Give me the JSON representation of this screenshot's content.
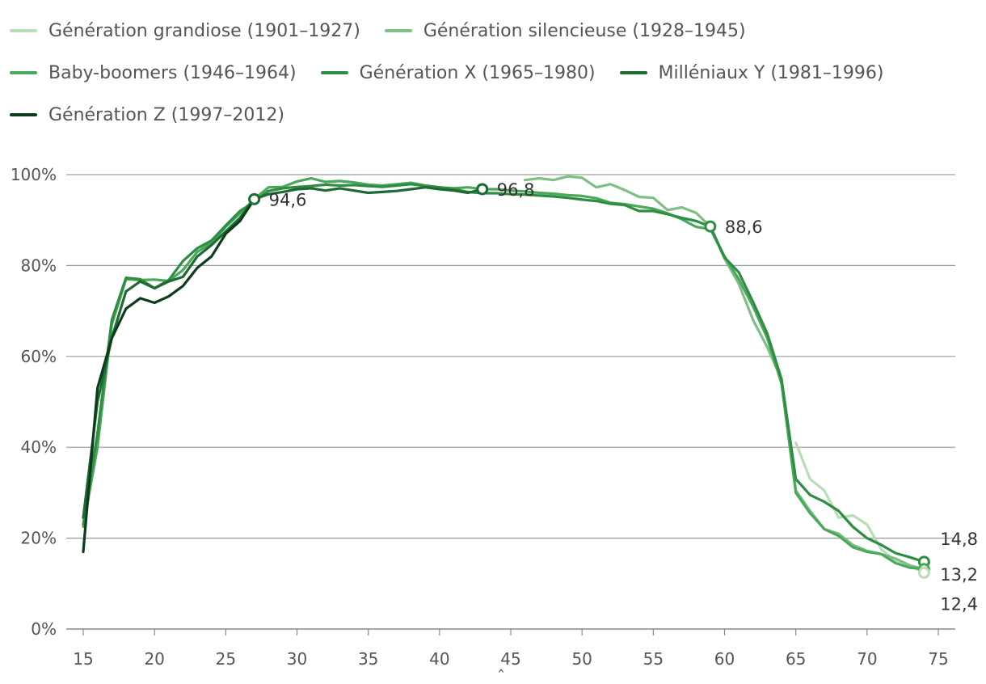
{
  "chart_data": {
    "type": "line",
    "title": "",
    "xlabel": "",
    "ylabel": "",
    "xlim": [
      15,
      75
    ],
    "ylim": [
      0,
      100
    ],
    "x_ticks": [
      15,
      20,
      25,
      30,
      35,
      40,
      45,
      50,
      55,
      60,
      65,
      70,
      75
    ],
    "x_tick_labels": [
      "15",
      "20",
      "25",
      "30",
      "35",
      "40",
      "45",
      "50",
      "55",
      "60",
      "65",
      "70",
      "75"
    ],
    "y_ticks": [
      0,
      20,
      40,
      60,
      80,
      100
    ],
    "y_tick_labels": [
      "0%",
      "20%",
      "40%",
      "60%",
      "80%",
      "100%"
    ],
    "grid": "horizontal",
    "legend_position": "top",
    "annotation_under_axis": "ˆ",
    "series": [
      {
        "name": "Génération grandiose (1901–1927)",
        "color": "#b9dcb9",
        "x": [
          65,
          66,
          67,
          68,
          69,
          70,
          71,
          72,
          73,
          74
        ],
        "values": [
          41.0,
          33.0,
          30.5,
          24.5,
          25.0,
          23.0,
          17.5,
          15.0,
          14.0,
          12.4
        ]
      },
      {
        "name": "Génération silencieuse (1928–1945)",
        "color": "#7dbf86",
        "x": [
          46,
          47,
          48,
          49,
          50,
          51,
          52,
          53,
          54,
          55,
          56,
          57,
          58,
          59,
          60,
          61,
          62,
          63,
          64,
          65,
          66,
          67,
          68,
          69,
          70,
          71,
          72,
          73,
          74
        ],
        "values": [
          98.8,
          99.2,
          98.8,
          99.6,
          99.3,
          97.2,
          97.9,
          96.6,
          95.1,
          94.9,
          92.2,
          92.8,
          91.6,
          88.6,
          81.5,
          76.0,
          68.0,
          62.0,
          55.0,
          30.5,
          26.0,
          22.0,
          21.0,
          18.5,
          17.2,
          16.5,
          15.5,
          14.0,
          13.2
        ]
      },
      {
        "name": "Baby-boomers (1946–1964)",
        "color": "#4ba85a",
        "x": [
          15,
          16,
          17,
          18,
          19,
          20,
          21,
          22,
          23,
          24,
          25,
          26,
          27,
          28,
          29,
          30,
          31,
          32,
          33,
          34,
          35,
          36,
          37,
          38,
          39,
          40,
          41,
          42,
          43,
          44,
          45,
          46,
          47,
          48,
          49,
          50,
          51,
          52,
          53,
          54,
          55,
          56,
          57,
          58,
          59,
          60,
          61,
          62,
          63,
          64,
          65,
          66,
          67,
          68,
          69,
          70,
          71,
          72,
          73,
          74
        ],
        "values": [
          22.5,
          40.0,
          67.0,
          77.0,
          76.8,
          76.9,
          76.6,
          79.0,
          83.0,
          85.0,
          88.5,
          91.5,
          94.6,
          97.2,
          97.3,
          98.5,
          99.2,
          98.4,
          98.6,
          98.3,
          97.8,
          97.6,
          97.9,
          98.2,
          97.6,
          97.2,
          97.0,
          97.2,
          96.8,
          96.8,
          96.5,
          96.3,
          96.0,
          95.8,
          95.5,
          95.3,
          94.8,
          93.8,
          93.5,
          93.0,
          92.5,
          91.5,
          90.2,
          88.5,
          88.0,
          82.0,
          77.0,
          71.0,
          64.0,
          54.0,
          30.0,
          25.5,
          22.0,
          20.5,
          18.0,
          17.0,
          16.5,
          14.5,
          13.5,
          13.2
        ]
      },
      {
        "name": "Génération X (1965–1980)",
        "color": "#2f8d43",
        "x": [
          15,
          16,
          17,
          18,
          19,
          20,
          21,
          22,
          23,
          24,
          25,
          26,
          27,
          28,
          29,
          30,
          31,
          32,
          33,
          34,
          35,
          36,
          37,
          38,
          39,
          40,
          41,
          42,
          43,
          44,
          45,
          46,
          47,
          48,
          49,
          50,
          51,
          52,
          53,
          54,
          55,
          56,
          57,
          58,
          59,
          60,
          61,
          62,
          63,
          64,
          65,
          66,
          67,
          68,
          69,
          70,
          71,
          72,
          73,
          74
        ],
        "values": [
          23.0,
          43.0,
          68.0,
          77.3,
          77.0,
          75.0,
          76.8,
          81.0,
          83.8,
          85.5,
          88.8,
          92.0,
          94.0,
          96.4,
          97.0,
          97.3,
          97.5,
          97.8,
          97.6,
          97.7,
          97.5,
          97.3,
          97.6,
          97.9,
          97.5,
          97.2,
          96.8,
          96.2,
          95.9,
          95.9,
          95.7,
          95.6,
          95.4,
          95.2,
          94.9,
          94.5,
          94.2,
          93.6,
          93.3,
          92.0,
          92.0,
          91.3,
          90.5,
          89.8,
          88.6,
          81.8,
          78.5,
          72.0,
          65.0,
          55.0,
          33.0,
          29.5,
          28.0,
          26.0,
          22.5,
          20.0,
          18.5,
          16.7,
          15.8,
          14.8
        ]
      },
      {
        "name": "Milléniaux Y (1981–1996)",
        "color": "#1d6b33",
        "x": [
          15,
          16,
          17,
          18,
          19,
          20,
          21,
          22,
          23,
          24,
          25,
          26,
          27,
          28,
          29,
          30,
          31,
          32,
          33,
          34,
          35,
          36,
          37,
          38,
          39,
          40,
          41,
          42,
          43
        ],
        "values": [
          24.5,
          50.0,
          64.0,
          74.3,
          76.5,
          75.0,
          76.5,
          77.5,
          82.0,
          84.5,
          87.5,
          90.5,
          94.6,
          95.7,
          96.2,
          96.8,
          97.0,
          96.5,
          97.0,
          96.5,
          96.0,
          96.2,
          96.4,
          96.8,
          97.2,
          96.8,
          96.5,
          96.0,
          96.8
        ]
      },
      {
        "name": "Génération Z (1997–2012)",
        "color": "#0b3d1c",
        "x": [
          15,
          16,
          17,
          18,
          19,
          20,
          21,
          22,
          23,
          24,
          25,
          26,
          27
        ],
        "values": [
          17.0,
          53.0,
          64.0,
          70.5,
          72.8,
          71.8,
          73.2,
          75.5,
          79.5,
          82.0,
          87.0,
          89.8,
          94.6
        ]
      }
    ],
    "annotations": [
      {
        "x": 27,
        "y": 94.6,
        "text": "94,6",
        "color": "#1d6b33",
        "anchor": "right"
      },
      {
        "x": 43,
        "y": 96.8,
        "text": "96,8",
        "color": "#1d6b33",
        "anchor": "right"
      },
      {
        "x": 59,
        "y": 88.6,
        "text": "88,6",
        "color": "#2f8d43",
        "anchor": "right"
      },
      {
        "x": 74,
        "y": 14.8,
        "text": "14,8",
        "color": "#2f8d43",
        "anchor": "end-top"
      },
      {
        "x": 74,
        "y": 13.2,
        "text": "13,2",
        "color": "#4ba85a",
        "anchor": "end-mid"
      },
      {
        "x": 74,
        "y": 12.4,
        "text": "12,4",
        "color": "#b9dcb9",
        "anchor": "end-bottom"
      }
    ]
  }
}
